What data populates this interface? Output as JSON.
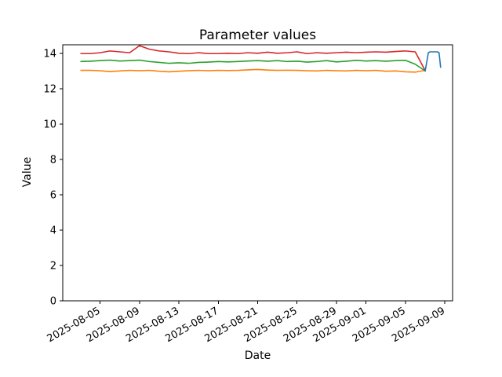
{
  "chart_data": {
    "type": "line",
    "title": "Parameter values",
    "xlabel": "Date",
    "ylabel": "Value",
    "grid": false,
    "legend": "none",
    "ylim": [
      0,
      14.5
    ],
    "y_ticks": [
      0,
      2,
      4,
      6,
      8,
      10,
      12,
      14
    ],
    "xlim": [
      "2025-08-01T05:00",
      "2025-09-09T19:00"
    ],
    "x_tick_labels": [
      "2025-08-05",
      "2025-08-09",
      "2025-08-13",
      "2025-08-17",
      "2025-08-21",
      "2025-08-25",
      "2025-08-29",
      "2025-09-01",
      "2025-09-05",
      "2025-09-09"
    ],
    "series": [
      {
        "name": "orange",
        "color": "#ff7f0e",
        "points": [
          [
            "2025-08-03",
            13.05
          ],
          [
            "2025-08-04",
            13.05
          ],
          [
            "2025-08-05",
            13.03
          ],
          [
            "2025-08-06",
            12.98
          ],
          [
            "2025-08-07",
            13.02
          ],
          [
            "2025-08-08",
            13.05
          ],
          [
            "2025-08-09",
            13.03
          ],
          [
            "2025-08-10",
            13.05
          ],
          [
            "2025-08-11",
            13.0
          ],
          [
            "2025-08-12",
            12.97
          ],
          [
            "2025-08-13",
            13.0
          ],
          [
            "2025-08-14",
            13.03
          ],
          [
            "2025-08-15",
            13.05
          ],
          [
            "2025-08-16",
            13.03
          ],
          [
            "2025-08-17",
            13.05
          ],
          [
            "2025-08-18",
            13.04
          ],
          [
            "2025-08-19",
            13.05
          ],
          [
            "2025-08-20",
            13.08
          ],
          [
            "2025-08-21",
            13.1
          ],
          [
            "2025-08-22",
            13.07
          ],
          [
            "2025-08-23",
            13.05
          ],
          [
            "2025-08-24",
            13.06
          ],
          [
            "2025-08-25",
            13.05
          ],
          [
            "2025-08-26",
            13.03
          ],
          [
            "2025-08-27",
            13.02
          ],
          [
            "2025-08-28",
            13.05
          ],
          [
            "2025-08-29",
            13.03
          ],
          [
            "2025-08-30",
            13.02
          ],
          [
            "2025-08-31",
            13.05
          ],
          [
            "2025-09-01",
            13.03
          ],
          [
            "2025-09-02",
            13.05
          ],
          [
            "2025-09-03",
            13.0
          ],
          [
            "2025-09-04",
            13.02
          ],
          [
            "2025-09-05",
            12.97
          ],
          [
            "2025-09-06",
            12.95
          ],
          [
            "2025-09-07",
            13.05
          ]
        ]
      },
      {
        "name": "green",
        "color": "#2ca02c",
        "points": [
          [
            "2025-08-03",
            13.55
          ],
          [
            "2025-08-04",
            13.57
          ],
          [
            "2025-08-05",
            13.6
          ],
          [
            "2025-08-06",
            13.63
          ],
          [
            "2025-08-07",
            13.58
          ],
          [
            "2025-08-08",
            13.6
          ],
          [
            "2025-08-09",
            13.63
          ],
          [
            "2025-08-10",
            13.55
          ],
          [
            "2025-08-11",
            13.5
          ],
          [
            "2025-08-12",
            13.45
          ],
          [
            "2025-08-13",
            13.48
          ],
          [
            "2025-08-14",
            13.45
          ],
          [
            "2025-08-15",
            13.5
          ],
          [
            "2025-08-16",
            13.52
          ],
          [
            "2025-08-17",
            13.55
          ],
          [
            "2025-08-18",
            13.53
          ],
          [
            "2025-08-19",
            13.55
          ],
          [
            "2025-08-20",
            13.58
          ],
          [
            "2025-08-21",
            13.6
          ],
          [
            "2025-08-22",
            13.57
          ],
          [
            "2025-08-23",
            13.6
          ],
          [
            "2025-08-24",
            13.55
          ],
          [
            "2025-08-25",
            13.57
          ],
          [
            "2025-08-26",
            13.52
          ],
          [
            "2025-08-27",
            13.55
          ],
          [
            "2025-08-28",
            13.6
          ],
          [
            "2025-08-29",
            13.53
          ],
          [
            "2025-08-30",
            13.57
          ],
          [
            "2025-08-31",
            13.62
          ],
          [
            "2025-09-01",
            13.58
          ],
          [
            "2025-09-02",
            13.6
          ],
          [
            "2025-09-03",
            13.57
          ],
          [
            "2025-09-04",
            13.6
          ],
          [
            "2025-09-05",
            13.62
          ],
          [
            "2025-09-06",
            13.4
          ],
          [
            "2025-09-07",
            13.02
          ]
        ]
      },
      {
        "name": "red",
        "color": "#d62728",
        "points": [
          [
            "2025-08-03",
            14.0
          ],
          [
            "2025-08-04",
            14.0
          ],
          [
            "2025-08-05",
            14.05
          ],
          [
            "2025-08-06",
            14.15
          ],
          [
            "2025-08-07",
            14.1
          ],
          [
            "2025-08-08",
            14.05
          ],
          [
            "2025-08-09",
            14.45
          ],
          [
            "2025-08-10",
            14.25
          ],
          [
            "2025-08-11",
            14.15
          ],
          [
            "2025-08-12",
            14.1
          ],
          [
            "2025-08-13",
            14.02
          ],
          [
            "2025-08-14",
            14.0
          ],
          [
            "2025-08-15",
            14.05
          ],
          [
            "2025-08-16",
            14.0
          ],
          [
            "2025-08-17",
            14.0
          ],
          [
            "2025-08-18",
            14.02
          ],
          [
            "2025-08-19",
            14.0
          ],
          [
            "2025-08-20",
            14.05
          ],
          [
            "2025-08-21",
            14.02
          ],
          [
            "2025-08-22",
            14.08
          ],
          [
            "2025-08-23",
            14.02
          ],
          [
            "2025-08-24",
            14.05
          ],
          [
            "2025-08-25",
            14.1
          ],
          [
            "2025-08-26",
            14.0
          ],
          [
            "2025-08-27",
            14.05
          ],
          [
            "2025-08-28",
            14.02
          ],
          [
            "2025-08-29",
            14.05
          ],
          [
            "2025-08-30",
            14.08
          ],
          [
            "2025-08-31",
            14.05
          ],
          [
            "2025-09-01",
            14.08
          ],
          [
            "2025-09-02",
            14.1
          ],
          [
            "2025-09-03",
            14.08
          ],
          [
            "2025-09-04",
            14.12
          ],
          [
            "2025-09-05",
            14.15
          ],
          [
            "2025-09-06",
            14.1
          ],
          [
            "2025-09-07",
            13.05
          ]
        ]
      },
      {
        "name": "blue",
        "color": "#1f77b4",
        "points": [
          [
            "2025-09-07T00:00",
            12.98
          ],
          [
            "2025-09-07T08:00",
            14.05
          ],
          [
            "2025-09-07T12:00",
            14.1
          ],
          [
            "2025-09-08T06:00",
            14.1
          ],
          [
            "2025-09-08T10:00",
            14.05
          ],
          [
            "2025-09-08T14:00",
            13.2
          ]
        ]
      }
    ],
    "colors": {
      "background": "#ffffff",
      "axis": "#000000"
    }
  }
}
